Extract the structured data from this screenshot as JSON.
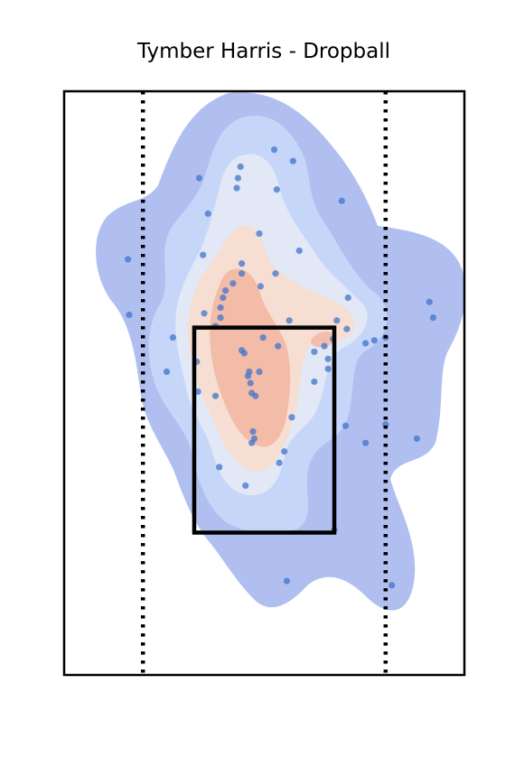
{
  "chart_data": {
    "type": "scatter",
    "title": "Tymber Harris - Dropball",
    "xlabel": "",
    "ylabel": "",
    "xlim": [
      -1.6,
      1.6
    ],
    "ylim": [
      0.5,
      4.6
    ],
    "grid": false,
    "strike_zone": {
      "x": [
        -0.56,
        0.56
      ],
      "y": [
        1.5,
        2.94
      ]
    },
    "reference_lines_x": [
      -0.97,
      0.97
    ],
    "density_colors": [
      "#a8b8ee",
      "#c9d8f9",
      "#e4e9f4",
      "#f8ddd0",
      "#f2b9a7"
    ],
    "point_color": "#3f74cc",
    "points": [
      {
        "x": 0.08,
        "y": 4.19
      },
      {
        "x": 0.23,
        "y": 4.11
      },
      {
        "x": -0.52,
        "y": 3.99
      },
      {
        "x": -0.19,
        "y": 4.07
      },
      {
        "x": -0.21,
        "y": 3.99
      },
      {
        "x": -0.22,
        "y": 3.92
      },
      {
        "x": 0.1,
        "y": 3.91
      },
      {
        "x": 0.62,
        "y": 3.83
      },
      {
        "x": -0.45,
        "y": 3.74
      },
      {
        "x": -0.04,
        "y": 3.6
      },
      {
        "x": -1.09,
        "y": 3.42
      },
      {
        "x": 0.28,
        "y": 3.48
      },
      {
        "x": -0.49,
        "y": 3.45
      },
      {
        "x": -0.18,
        "y": 3.39
      },
      {
        "x": -0.18,
        "y": 3.32
      },
      {
        "x": 0.09,
        "y": 3.32
      },
      {
        "x": -0.03,
        "y": 3.23
      },
      {
        "x": -0.25,
        "y": 3.25
      },
      {
        "x": -0.31,
        "y": 3.2
      },
      {
        "x": -0.33,
        "y": 3.15
      },
      {
        "x": -0.35,
        "y": 3.08
      },
      {
        "x": 0.67,
        "y": 3.15
      },
      {
        "x": 1.32,
        "y": 3.12
      },
      {
        "x": -0.48,
        "y": 3.04
      },
      {
        "x": -0.35,
        "y": 3.01
      },
      {
        "x": -1.08,
        "y": 3.03
      },
      {
        "x": 1.35,
        "y": 3.01
      },
      {
        "x": 0.2,
        "y": 2.99
      },
      {
        "x": 0.58,
        "y": 2.99
      },
      {
        "x": -0.39,
        "y": 2.95
      },
      {
        "x": 0.66,
        "y": 2.93
      },
      {
        "x": -0.73,
        "y": 2.87
      },
      {
        "x": -0.01,
        "y": 2.87
      },
      {
        "x": 0.55,
        "y": 2.86
      },
      {
        "x": 0.97,
        "y": 2.87
      },
      {
        "x": 0.88,
        "y": 2.85
      },
      {
        "x": 0.81,
        "y": 2.83
      },
      {
        "x": 0.11,
        "y": 2.81
      },
      {
        "x": 0.48,
        "y": 2.81
      },
      {
        "x": -0.18,
        "y": 2.78
      },
      {
        "x": -0.16,
        "y": 2.76
      },
      {
        "x": 0.4,
        "y": 2.77
      },
      {
        "x": 0.51,
        "y": 2.72
      },
      {
        "x": -0.54,
        "y": 2.7
      },
      {
        "x": 0.51,
        "y": 2.65
      },
      {
        "x": -0.78,
        "y": 2.63
      },
      {
        "x": -0.12,
        "y": 2.63
      },
      {
        "x": -0.04,
        "y": 2.63
      },
      {
        "x": -0.13,
        "y": 2.6
      },
      {
        "x": 0.4,
        "y": 2.56
      },
      {
        "x": -0.11,
        "y": 2.55
      },
      {
        "x": -0.53,
        "y": 2.49
      },
      {
        "x": -0.39,
        "y": 2.46
      },
      {
        "x": -0.1,
        "y": 2.48
      },
      {
        "x": -0.07,
        "y": 2.46
      },
      {
        "x": 0.22,
        "y": 2.31
      },
      {
        "x": 0.65,
        "y": 2.25
      },
      {
        "x": 0.97,
        "y": 2.26
      },
      {
        "x": -0.09,
        "y": 2.21
      },
      {
        "x": 1.22,
        "y": 2.16
      },
      {
        "x": -0.08,
        "y": 2.16
      },
      {
        "x": -0.1,
        "y": 2.13
      },
      {
        "x": 0.81,
        "y": 2.13
      },
      {
        "x": 0.16,
        "y": 2.07
      },
      {
        "x": 0.12,
        "y": 1.99
      },
      {
        "x": -0.36,
        "y": 1.96
      },
      {
        "x": -0.15,
        "y": 1.83
      },
      {
        "x": 0.56,
        "y": 1.52
      },
      {
        "x": 0.18,
        "y": 1.16
      },
      {
        "x": 1.02,
        "y": 1.13
      }
    ]
  }
}
